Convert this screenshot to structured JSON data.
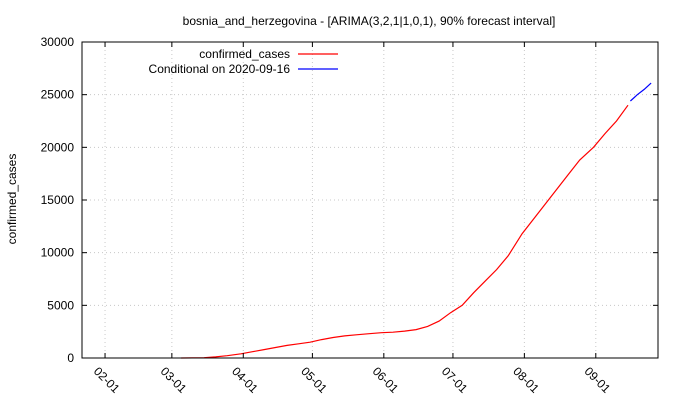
{
  "chart_data": {
    "type": "line",
    "title": "bosnia_and_herzegovina -  [ARIMA(3,2,1|1,0,1), 90% forecast interval]",
    "xlabel": "",
    "ylabel": "confirmed_cases",
    "ylim": [
      0,
      30000
    ],
    "xlim": [
      "2020-01-22",
      "2020-09-28"
    ],
    "y_ticks": [
      "0",
      "5000",
      "10000",
      "15000",
      "20000",
      "25000",
      "30000"
    ],
    "x_ticks": [
      {
        "date": "2020-02-01",
        "label": "02-01"
      },
      {
        "date": "2020-03-01",
        "label": "03-01"
      },
      {
        "date": "2020-04-01",
        "label": "04-01"
      },
      {
        "date": "2020-05-01",
        "label": "05-01"
      },
      {
        "date": "2020-06-01",
        "label": "06-01"
      },
      {
        "date": "2020-07-01",
        "label": "07-01"
      },
      {
        "date": "2020-08-01",
        "label": "08-01"
      },
      {
        "date": "2020-09-01",
        "label": "09-01"
      }
    ],
    "grid": true,
    "legend_position": "top-left",
    "series": [
      {
        "name": "confirmed_cases",
        "color": "#ff0000",
        "points": [
          [
            "2020-03-05",
            0
          ],
          [
            "2020-03-10",
            5
          ],
          [
            "2020-03-15",
            25
          ],
          [
            "2020-03-20",
            100
          ],
          [
            "2020-03-25",
            220
          ],
          [
            "2020-03-31",
            400
          ],
          [
            "2020-04-05",
            600
          ],
          [
            "2020-04-10",
            800
          ],
          [
            "2020-04-15",
            1000
          ],
          [
            "2020-04-20",
            1200
          ],
          [
            "2020-04-25",
            1350
          ],
          [
            "2020-04-30",
            1500
          ],
          [
            "2020-05-05",
            1750
          ],
          [
            "2020-05-10",
            1950
          ],
          [
            "2020-05-15",
            2100
          ],
          [
            "2020-05-20",
            2200
          ],
          [
            "2020-05-25",
            2300
          ],
          [
            "2020-05-31",
            2400
          ],
          [
            "2020-06-05",
            2450
          ],
          [
            "2020-06-10",
            2550
          ],
          [
            "2020-06-15",
            2700
          ],
          [
            "2020-06-20",
            3000
          ],
          [
            "2020-06-25",
            3500
          ],
          [
            "2020-06-30",
            4300
          ],
          [
            "2020-07-05",
            5000
          ],
          [
            "2020-07-10",
            6200
          ],
          [
            "2020-07-15",
            7300
          ],
          [
            "2020-07-20",
            8400
          ],
          [
            "2020-07-25",
            9700
          ],
          [
            "2020-07-31",
            11800
          ],
          [
            "2020-08-05",
            13200
          ],
          [
            "2020-08-10",
            14600
          ],
          [
            "2020-08-15",
            16000
          ],
          [
            "2020-08-20",
            17400
          ],
          [
            "2020-08-25",
            18800
          ],
          [
            "2020-08-31",
            20000
          ],
          [
            "2020-09-05",
            21300
          ],
          [
            "2020-09-10",
            22500
          ],
          [
            "2020-09-15",
            24000
          ]
        ]
      },
      {
        "name": "Conditional on 2020-09-16",
        "color": "#0000ff",
        "points": [
          [
            "2020-09-16",
            24400
          ],
          [
            "2020-09-19",
            25000
          ],
          [
            "2020-09-22",
            25500
          ],
          [
            "2020-09-25",
            26100
          ]
        ]
      }
    ]
  }
}
